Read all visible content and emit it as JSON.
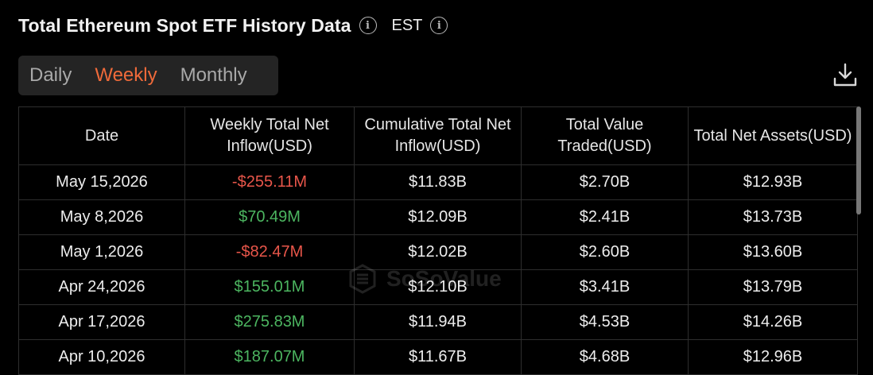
{
  "header": {
    "title": "Total Ethereum Spot ETF History Data",
    "title_info_icon": "info-icon",
    "timezone": "EST",
    "timezone_info_icon": "info-icon"
  },
  "tabs": [
    {
      "label": "Daily",
      "active": false
    },
    {
      "label": "Weekly",
      "active": true
    },
    {
      "label": "Monthly",
      "active": false
    }
  ],
  "toolbar": {
    "download_icon": "download-icon"
  },
  "colors": {
    "accent": "#ef6a3a",
    "positive": "#4cb560",
    "negative": "#e8564a",
    "background": "#000000"
  },
  "table": {
    "columns": [
      "Date",
      "Weekly Total Net Inflow(USD)",
      "Cumulative Total Net Inflow(USD)",
      "Total Value Traded(USD)",
      "Total Net Assets(USD)"
    ],
    "rows": [
      {
        "date": "May 15,2026",
        "weekly_net_inflow": "-$255.11M",
        "cumulative_net_inflow": "$11.83B",
        "value_traded": "$2.70B",
        "net_assets": "$12.93B"
      },
      {
        "date": "May 8,2026",
        "weekly_net_inflow": "$70.49M",
        "cumulative_net_inflow": "$12.09B",
        "value_traded": "$2.41B",
        "net_assets": "$13.73B"
      },
      {
        "date": "May 1,2026",
        "weekly_net_inflow": "-$82.47M",
        "cumulative_net_inflow": "$12.02B",
        "value_traded": "$2.60B",
        "net_assets": "$13.60B"
      },
      {
        "date": "Apr 24,2026",
        "weekly_net_inflow": "$155.01M",
        "cumulative_net_inflow": "$12.10B",
        "value_traded": "$3.41B",
        "net_assets": "$13.79B"
      },
      {
        "date": "Apr 17,2026",
        "weekly_net_inflow": "$275.83M",
        "cumulative_net_inflow": "$11.94B",
        "value_traded": "$4.53B",
        "net_assets": "$14.26B"
      },
      {
        "date": "Apr 10,2026",
        "weekly_net_inflow": "$187.07M",
        "cumulative_net_inflow": "$11.67B",
        "value_traded": "$4.68B",
        "net_assets": "$12.96B"
      }
    ]
  },
  "watermark": {
    "text": "SoSoValue"
  }
}
